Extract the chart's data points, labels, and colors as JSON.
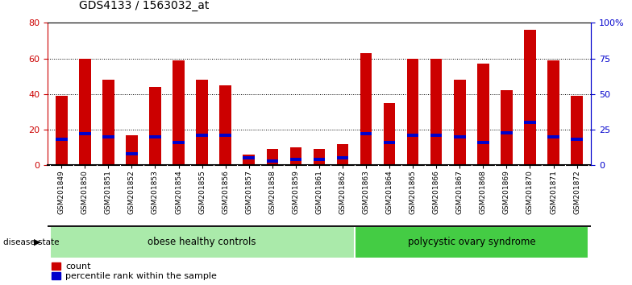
{
  "title": "GDS4133 / 1563032_at",
  "samples": [
    "GSM201849",
    "GSM201850",
    "GSM201851",
    "GSM201852",
    "GSM201853",
    "GSM201854",
    "GSM201855",
    "GSM201856",
    "GSM201857",
    "GSM201858",
    "GSM201859",
    "GSM201861",
    "GSM201862",
    "GSM201863",
    "GSM201864",
    "GSM201865",
    "GSM201866",
    "GSM201867",
    "GSM201868",
    "GSM201869",
    "GSM201870",
    "GSM201871",
    "GSM201872"
  ],
  "counts": [
    39,
    60,
    48,
    17,
    44,
    59,
    48,
    45,
    6,
    9,
    10,
    9,
    12,
    63,
    35,
    60,
    60,
    48,
    57,
    42,
    76,
    59,
    39
  ],
  "percentiles": [
    18,
    22,
    20,
    8,
    20,
    16,
    21,
    21,
    5,
    3,
    4,
    4,
    5,
    22,
    16,
    21,
    21,
    20,
    16,
    23,
    30,
    20,
    18
  ],
  "groups": [
    {
      "label": "obese healthy controls",
      "start": 0,
      "end": 13,
      "color": "#aaeaaa"
    },
    {
      "label": "polycystic ovary syndrome",
      "start": 13,
      "end": 23,
      "color": "#44cc44"
    }
  ],
  "ylim_left": [
    0,
    80
  ],
  "ylim_right": [
    0,
    100
  ],
  "yticks_left": [
    0,
    20,
    40,
    60,
    80
  ],
  "yticks_right": [
    0,
    25,
    50,
    75,
    100
  ],
  "bar_color": "#CC0000",
  "percentile_color": "#0000CC",
  "background_color": "#ffffff",
  "grid_color": "#000000",
  "title_color": "#000000",
  "left_axis_color": "#CC0000",
  "right_axis_color": "#0000CC",
  "xtick_bg_color": "#d0d0d0",
  "disease_state_label": "disease state",
  "legend_count_label": "count",
  "legend_percentile_label": "percentile rank within the sample"
}
